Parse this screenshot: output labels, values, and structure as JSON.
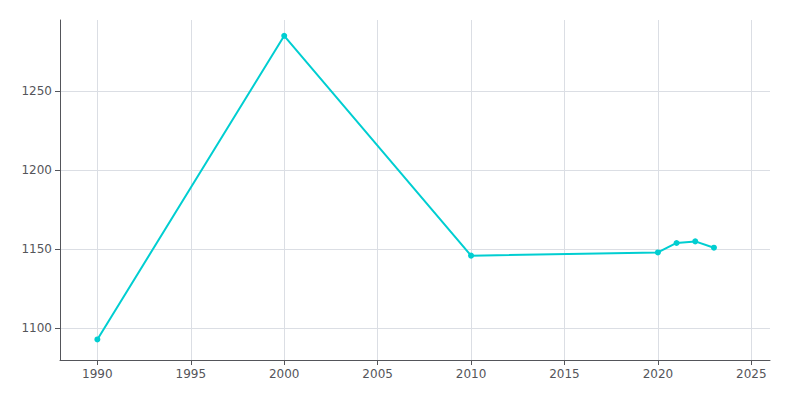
{
  "chart_data": {
    "type": "line",
    "x": [
      1990,
      2000,
      2010,
      2020,
      2021,
      2022,
      2023
    ],
    "values": [
      1093,
      1285,
      1146,
      1148,
      1154,
      1155,
      1151
    ],
    "color": "#00CED1",
    "marker": "circle",
    "xlim": [
      1988,
      2026
    ],
    "ylim": [
      1080,
      1295
    ],
    "xticks": [
      1990,
      1995,
      2000,
      2005,
      2010,
      2015,
      2020,
      2025
    ],
    "yticks": [
      1100,
      1150,
      1200,
      1250
    ],
    "grid": true
  }
}
